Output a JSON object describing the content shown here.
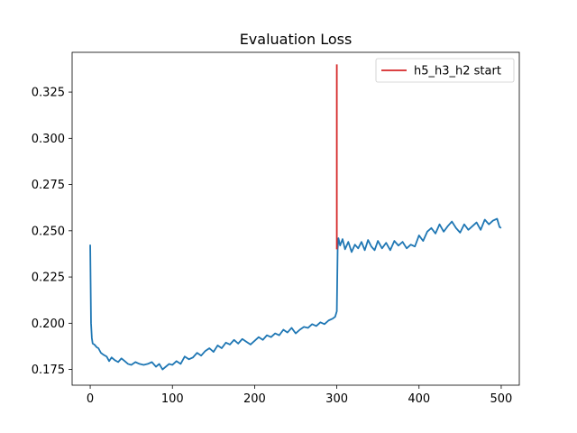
{
  "chart_data": {
    "type": "line",
    "title": "Evaluation Loss",
    "xlabel": "",
    "ylabel": "",
    "xlim": [
      -22,
      522
    ],
    "ylim": [
      0.1665,
      0.3465
    ],
    "xticks": [
      0,
      100,
      200,
      300,
      400,
      500
    ],
    "yticks": [
      0.175,
      0.2,
      0.225,
      0.25,
      0.275,
      0.3,
      0.325
    ],
    "ytick_labels": [
      "0.175",
      "0.200",
      "0.225",
      "0.250",
      "0.275",
      "0.300",
      "0.325"
    ],
    "grid": false,
    "legend_position": "top-right",
    "series": [
      {
        "name": "",
        "color": "#1f77b4",
        "points": [
          [
            0,
            0.2425
          ],
          [
            1,
            0.2
          ],
          [
            2,
            0.192
          ],
          [
            3,
            0.189
          ],
          [
            5,
            0.1885
          ],
          [
            8,
            0.187
          ],
          [
            10,
            0.1865
          ],
          [
            13,
            0.184
          ],
          [
            16,
            0.183
          ],
          [
            20,
            0.182
          ],
          [
            23,
            0.1795
          ],
          [
            26,
            0.1815
          ],
          [
            30,
            0.18
          ],
          [
            34,
            0.179
          ],
          [
            38,
            0.181
          ],
          [
            42,
            0.1795
          ],
          [
            46,
            0.178
          ],
          [
            50,
            0.1775
          ],
          [
            55,
            0.179
          ],
          [
            60,
            0.178
          ],
          [
            65,
            0.1775
          ],
          [
            70,
            0.178
          ],
          [
            75,
            0.179
          ],
          [
            80,
            0.1765
          ],
          [
            84,
            0.178
          ],
          [
            88,
            0.175
          ],
          [
            92,
            0.1765
          ],
          [
            96,
            0.178
          ],
          [
            100,
            0.1775
          ],
          [
            105,
            0.1795
          ],
          [
            110,
            0.178
          ],
          [
            115,
            0.182
          ],
          [
            120,
            0.1805
          ],
          [
            125,
            0.1815
          ],
          [
            130,
            0.184
          ],
          [
            135,
            0.1825
          ],
          [
            140,
            0.185
          ],
          [
            145,
            0.1865
          ],
          [
            150,
            0.1845
          ],
          [
            155,
            0.188
          ],
          [
            160,
            0.1865
          ],
          [
            165,
            0.1895
          ],
          [
            170,
            0.1885
          ],
          [
            175,
            0.191
          ],
          [
            180,
            0.189
          ],
          [
            185,
            0.1915
          ],
          [
            190,
            0.19
          ],
          [
            195,
            0.1885
          ],
          [
            200,
            0.1905
          ],
          [
            205,
            0.1925
          ],
          [
            210,
            0.191
          ],
          [
            215,
            0.1935
          ],
          [
            220,
            0.1925
          ],
          [
            225,
            0.1945
          ],
          [
            230,
            0.1935
          ],
          [
            235,
            0.1965
          ],
          [
            240,
            0.195
          ],
          [
            245,
            0.1975
          ],
          [
            250,
            0.1945
          ],
          [
            255,
            0.1965
          ],
          [
            260,
            0.198
          ],
          [
            265,
            0.1975
          ],
          [
            270,
            0.1995
          ],
          [
            275,
            0.1985
          ],
          [
            280,
            0.2005
          ],
          [
            285,
            0.1995
          ],
          [
            290,
            0.2015
          ],
          [
            295,
            0.2025
          ],
          [
            298,
            0.2035
          ],
          [
            300,
            0.2065
          ],
          [
            301,
            0.24
          ],
          [
            302,
            0.246
          ],
          [
            304,
            0.242
          ],
          [
            307,
            0.2455
          ],
          [
            310,
            0.24
          ],
          [
            314,
            0.244
          ],
          [
            318,
            0.2385
          ],
          [
            322,
            0.2425
          ],
          [
            326,
            0.2405
          ],
          [
            330,
            0.244
          ],
          [
            334,
            0.2395
          ],
          [
            338,
            0.245
          ],
          [
            342,
            0.2415
          ],
          [
            346,
            0.2395
          ],
          [
            350,
            0.2445
          ],
          [
            355,
            0.2405
          ],
          [
            360,
            0.2435
          ],
          [
            365,
            0.2395
          ],
          [
            370,
            0.2445
          ],
          [
            375,
            0.242
          ],
          [
            380,
            0.244
          ],
          [
            385,
            0.2405
          ],
          [
            390,
            0.2425
          ],
          [
            395,
            0.2415
          ],
          [
            400,
            0.2475
          ],
          [
            405,
            0.2445
          ],
          [
            410,
            0.2495
          ],
          [
            415,
            0.2515
          ],
          [
            420,
            0.2485
          ],
          [
            425,
            0.2535
          ],
          [
            430,
            0.2495
          ],
          [
            435,
            0.2525
          ],
          [
            440,
            0.255
          ],
          [
            445,
            0.2515
          ],
          [
            450,
            0.249
          ],
          [
            455,
            0.2535
          ],
          [
            460,
            0.2505
          ],
          [
            465,
            0.2525
          ],
          [
            470,
            0.2545
          ],
          [
            475,
            0.2505
          ],
          [
            480,
            0.256
          ],
          [
            485,
            0.2535
          ],
          [
            490,
            0.2555
          ],
          [
            495,
            0.2565
          ],
          [
            498,
            0.252
          ],
          [
            500,
            0.2515
          ]
        ]
      },
      {
        "name": "h5_h3_h2 start",
        "color": "#d62728",
        "points": [
          [
            300,
            0.24
          ],
          [
            300,
            0.34
          ]
        ]
      }
    ]
  }
}
